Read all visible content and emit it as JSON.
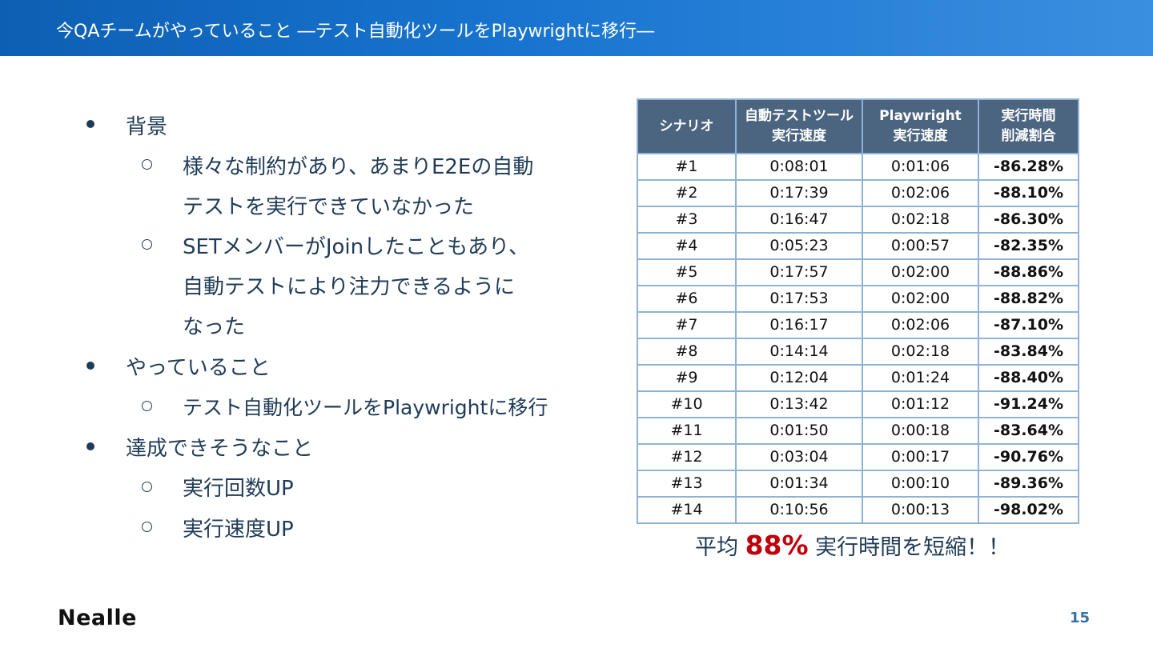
{
  "header": {
    "title": "今QAチームがやっていること ―テスト自動化ツールをPlaywrightに移行―"
  },
  "bullets": {
    "background_heading": "背景",
    "background_item1_line1": "様々な制約があり、あまりE2Eの自動",
    "background_item1_line2": "テストを実行できていなかった",
    "background_item2_line1": "SETメンバーがJoinしたこともあり、",
    "background_item2_line2": "自動テストにより注力できるように",
    "background_item2_line3": "なった",
    "doing_heading": "やっていること",
    "doing_item1": "テスト自動化ツールをPlaywrightに移行",
    "achieve_heading": "達成できそうなこと",
    "achieve_item1": "実行回数UP",
    "achieve_item2": "実行速度UP"
  },
  "table": {
    "headers": [
      {
        "line1": "シナリオ",
        "line2": ""
      },
      {
        "line1": "自動テストツール",
        "line2": "実行速度"
      },
      {
        "line1": "Playwright",
        "line2": "実行速度"
      },
      {
        "line1": "実行時間",
        "line2": "削減割合"
      }
    ],
    "rows": [
      [
        "#1",
        "0:08:01",
        "0:01:06",
        "-86.28%"
      ],
      [
        "#2",
        "0:17:39",
        "0:02:06",
        "-88.10%"
      ],
      [
        "#3",
        "0:16:47",
        "0:02:18",
        "-86.30%"
      ],
      [
        "#4",
        "0:05:23",
        "0:00:57",
        "-82.35%"
      ],
      [
        "#5",
        "0:17:57",
        "0:02:00",
        "-88.86%"
      ],
      [
        "#6",
        "0:17:53",
        "0:02:00",
        "-88.82%"
      ],
      [
        "#7",
        "0:16:17",
        "0:02:06",
        "-87.10%"
      ],
      [
        "#8",
        "0:14:14",
        "0:02:18",
        "-83.84%"
      ],
      [
        "#9",
        "0:12:04",
        "0:01:24",
        "-88.40%"
      ],
      [
        "#10",
        "0:13:42",
        "0:01:12",
        "-91.24%"
      ],
      [
        "#11",
        "0:01:50",
        "0:00:18",
        "-83.64%"
      ],
      [
        "#12",
        "0:03:04",
        "0:00:17",
        "-90.76%"
      ],
      [
        "#13",
        "0:01:34",
        "0:00:10",
        "-89.36%"
      ],
      [
        "#14",
        "0:10:56",
        "0:00:13",
        "-98.02%"
      ]
    ]
  },
  "summary": {
    "prefix": "平均 ",
    "percent": "88%",
    "suffix": " 実行時間を短縮！！"
  },
  "footer": {
    "logo": "Nealle",
    "page_number": "15"
  }
}
